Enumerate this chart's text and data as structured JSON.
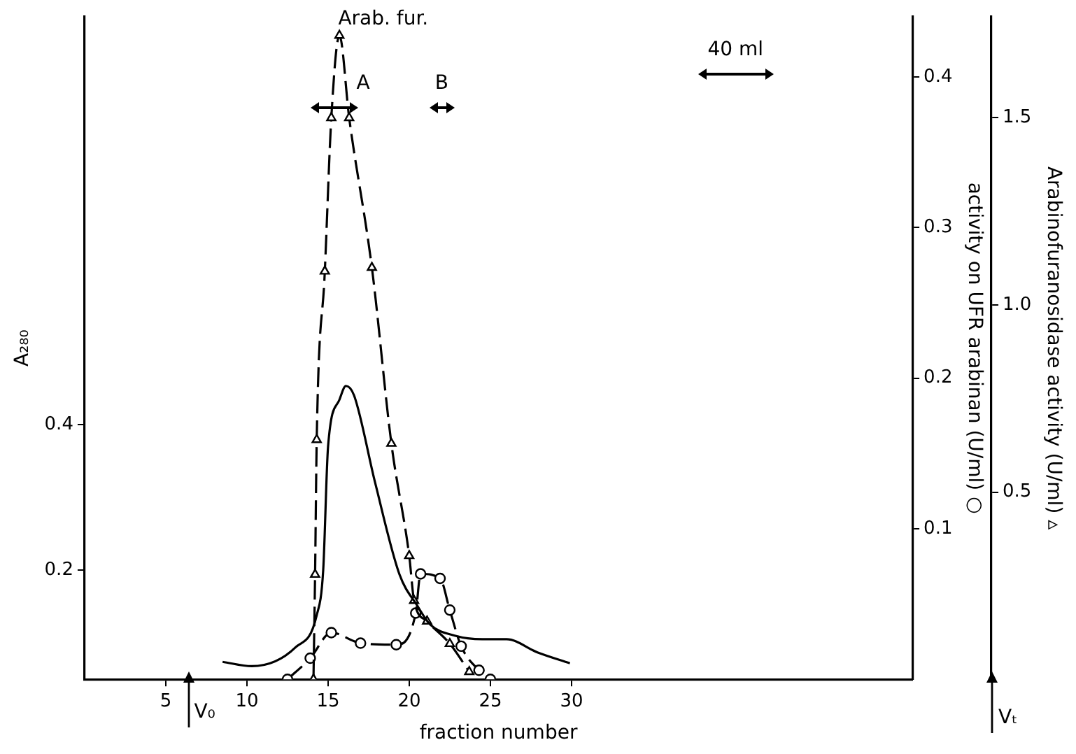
{
  "chart_data": {
    "type": "line",
    "xlabel": "fraction number",
    "ylabel": "A₂₈₀",
    "y2label": "activity on UFR arabinan (U/ml) ○",
    "y3label": "Arabinofuranosidase activity (U/ml) ▵",
    "xlim": [
      0,
      51
    ],
    "xticks": [
      5,
      10,
      15,
      20,
      25,
      30
    ],
    "ylim": [
      0.05,
      0.96
    ],
    "yticks": [
      0.2,
      0.4
    ],
    "y2lim": [
      0,
      0.44
    ],
    "y2ticks": [
      0.1,
      0.2,
      0.3,
      0.4
    ],
    "y3lim": [
      0,
      1.77
    ],
    "y3ticks": [
      0.5,
      {
        "value": 1,
        "label": "1.0"
      },
      1.5
    ],
    "series": [
      {
        "color": "#000000",
        "marker": "none",
        "line_style": "solid",
        "x": [
          8.5,
          10.3,
          13.0,
          14.3,
          14.7,
          15.0,
          15.7,
          16.1,
          16.6,
          17.9,
          19.4,
          20.5,
          21.3,
          22.8,
          24.5,
          26.0,
          27.9,
          29.9
        ],
        "values": [
          0.074,
          0.068,
          0.094,
          0.138,
          0.2,
          0.37,
          0.434,
          0.453,
          0.44,
          0.32,
          0.194,
          0.151,
          0.125,
          0.11,
          0.105,
          0.105,
          0.087,
          0.072
        ]
      },
      {
        "axis": "y3",
        "color": "#000000",
        "marker": "triangle",
        "line_style": "dashed",
        "x": [
          14.1,
          14.2,
          14.3,
          14.8,
          15.2,
          15.7,
          16.3,
          17.7,
          18.9,
          20.0,
          20.3,
          21.1,
          22.5,
          23.7
        ],
        "values": [
          0,
          0.28,
          0.64,
          1.09,
          1.5,
          1.72,
          1.5,
          1.1,
          0.63,
          0.33,
          0.21,
          0.155,
          0.095,
          0.02
        ]
      },
      {
        "axis": "y2",
        "color": "#000000",
        "marker": "circle",
        "line_style": "dashed",
        "x": [
          12.5,
          13.9,
          15.2,
          17.0,
          19.2,
          20.4,
          20.7,
          21.9,
          22.5,
          23.2,
          24.3,
          25.0
        ],
        "values": [
          0,
          0.014,
          0.031,
          0.024,
          0.023,
          0.044,
          0.07,
          0.067,
          0.046,
          0.022,
          0.006,
          0
        ]
      }
    ],
    "annotations": [
      "Arab. fur.",
      "A",
      "B",
      "40 ml",
      "V₀",
      "Vₜ"
    ]
  }
}
